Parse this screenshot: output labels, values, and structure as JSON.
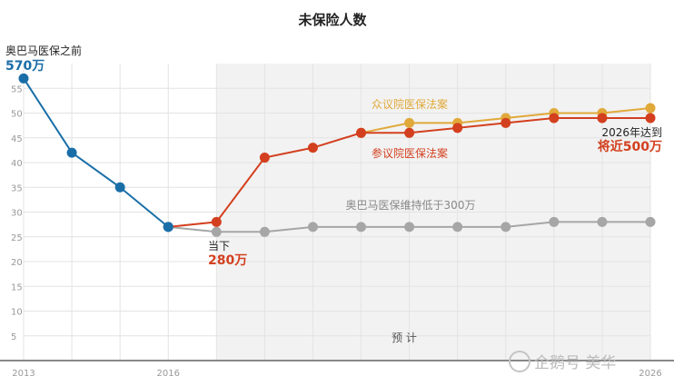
{
  "chart_data": {
    "type": "line",
    "title": "未保险人数",
    "x": [
      2013,
      2014,
      2015,
      2016,
      2017,
      2018,
      2019,
      2020,
      2021,
      2022,
      2023,
      2024,
      2025,
      2026
    ],
    "x_tick_labels": [
      "2013",
      "2016",
      "2026"
    ],
    "ylim": [
      0,
      60
    ],
    "y_ticks": [
      5,
      10,
      15,
      20,
      25,
      30,
      35,
      40,
      45,
      50,
      55
    ],
    "grid": true,
    "forecast_label": "预 计",
    "series": [
      {
        "key": "before",
        "name": "",
        "color": "#1a6ea8",
        "x": [
          2013,
          2014,
          2015,
          2016
        ],
        "values": [
          57,
          42,
          35,
          27
        ]
      },
      {
        "key": "maintain",
        "name": "奥巴马医保维持低于300万",
        "color": "#a6a6a6",
        "x": [
          2016,
          2017,
          2018,
          2019,
          2020,
          2021,
          2022,
          2023,
          2024,
          2025,
          2026
        ],
        "values": [
          27,
          26,
          26,
          27,
          27,
          27,
          27,
          27,
          28,
          28,
          28
        ]
      },
      {
        "key": "house",
        "name": "众议院医保法案",
        "color": "#e0a93a",
        "x": [
          2020,
          2021,
          2022,
          2023,
          2024,
          2025,
          2026
        ],
        "values": [
          46,
          48,
          48,
          49,
          50,
          50,
          51
        ]
      },
      {
        "key": "senate",
        "name": "参议院医保法案",
        "color": "#d3401f",
        "x": [
          2016,
          2017,
          2018,
          2019,
          2020,
          2021,
          2022,
          2023,
          2024,
          2025,
          2026
        ],
        "values": [
          27,
          28,
          41,
          43,
          46,
          46,
          47,
          48,
          49,
          49,
          49
        ]
      }
    ],
    "annotations": {
      "before_line1": "奥巴马医保之前",
      "before_line2": "570万",
      "now_line1": "当下",
      "now_line2": "280万",
      "end_line1": "2026年达到",
      "end_line2": "将近500万"
    },
    "colors": {
      "before_text": "#1a6ea8",
      "now_text": "#d3401f",
      "end_text": "#d3401f",
      "forecast_bg": "#f2f2f2",
      "grid": "#e3e3e3",
      "axis": "#888888"
    }
  },
  "watermark": "企鹅号 美华"
}
